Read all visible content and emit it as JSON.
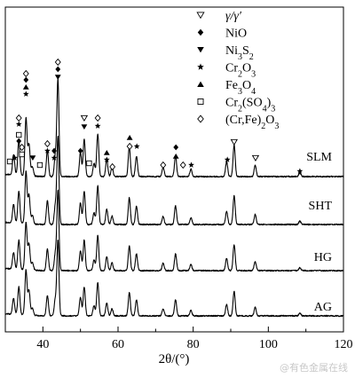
{
  "chart_data": {
    "type": "line",
    "xlabel": "2θ/(°)",
    "xlim": [
      30,
      120
    ],
    "xticks": [
      40,
      60,
      80,
      100,
      120
    ],
    "ylabel": "",
    "series": [
      {
        "name": "SLM",
        "offset": 3
      },
      {
        "name": "SHT",
        "offset": 2
      },
      {
        "name": "HG",
        "offset": 1
      },
      {
        "name": "AG",
        "offset": 0
      }
    ],
    "peaks": [
      {
        "x": 32.2,
        "h": 0.55
      },
      {
        "x": 33.6,
        "h": 0.95
      },
      {
        "x": 35.5,
        "h": 1.55
      },
      {
        "x": 36.3,
        "h": 0.85
      },
      {
        "x": 37.2,
        "h": 0.25
      },
      {
        "x": 41.2,
        "h": 0.7
      },
      {
        "x": 43.3,
        "h": 0.55
      },
      {
        "x": 44.0,
        "h": 2.6
      },
      {
        "x": 50.0,
        "h": 0.65
      },
      {
        "x": 51.0,
        "h": 1.0
      },
      {
        "x": 53.6,
        "h": 0.35
      },
      {
        "x": 54.6,
        "h": 1.15
      },
      {
        "x": 57.0,
        "h": 0.45
      },
      {
        "x": 58.4,
        "h": 0.25
      },
      {
        "x": 63.0,
        "h": 0.8
      },
      {
        "x": 64.9,
        "h": 0.55
      },
      {
        "x": 72.0,
        "h": 0.25
      },
      {
        "x": 75.3,
        "h": 0.55
      },
      {
        "x": 79.4,
        "h": 0.2
      },
      {
        "x": 88.9,
        "h": 0.4
      },
      {
        "x": 90.9,
        "h": 0.85
      },
      {
        "x": 96.5,
        "h": 0.3
      },
      {
        "x": 108.4,
        "h": 0.1
      }
    ],
    "legend": [
      {
        "symbol": "triangle-down-open",
        "label": "γ/γ′"
      },
      {
        "symbol": "diamond-filled",
        "label": "NiO"
      },
      {
        "symbol": "triangle-down-filled",
        "label": "Ni3S2"
      },
      {
        "symbol": "star",
        "label": "Cr2O3"
      },
      {
        "symbol": "triangle-up-filled",
        "label": "Fe3O4"
      },
      {
        "symbol": "square-open",
        "label": "Cr2(SO4)3"
      },
      {
        "symbol": "diamond-open",
        "label": "(Cr,Fe)2O3"
      }
    ],
    "markers": [
      {
        "x": 31.2,
        "y": 182,
        "symbol": "square-open"
      },
      {
        "x": 32.5,
        "y": 178,
        "symbol": "star"
      },
      {
        "x": 33.6,
        "y": 133,
        "symbol": "diamond-open"
      },
      {
        "x": 33.6,
        "y": 140,
        "symbol": "star"
      },
      {
        "x": 33.6,
        "y": 152,
        "symbol": "square-open"
      },
      {
        "x": 33.6,
        "y": 159,
        "symbol": "diamond-filled"
      },
      {
        "x": 34.4,
        "y": 166,
        "symbol": "diamond-open"
      },
      {
        "x": 34.4,
        "y": 174,
        "symbol": "square-open"
      },
      {
        "x": 35.5,
        "y": 83,
        "symbol": "diamond-open"
      },
      {
        "x": 35.5,
        "y": 90,
        "symbol": "diamond-filled"
      },
      {
        "x": 35.5,
        "y": 98,
        "symbol": "triangle-up-filled"
      },
      {
        "x": 35.5,
        "y": 106,
        "symbol": "star"
      },
      {
        "x": 37.3,
        "y": 178,
        "symbol": "triangle-down-filled"
      },
      {
        "x": 39.2,
        "y": 186,
        "symbol": "square-open"
      },
      {
        "x": 41.2,
        "y": 162,
        "symbol": "diamond-open"
      },
      {
        "x": 41.2,
        "y": 170,
        "symbol": "star"
      },
      {
        "x": 43.0,
        "y": 170,
        "symbol": "diamond-filled"
      },
      {
        "x": 43.0,
        "y": 178,
        "symbol": "star"
      },
      {
        "x": 44.0,
        "y": 70,
        "symbol": "diamond-open"
      },
      {
        "x": 44.0,
        "y": 78,
        "symbol": "diamond-filled"
      },
      {
        "x": 44.0,
        "y": 87,
        "symbol": "triangle-down-filled"
      },
      {
        "x": 50.0,
        "y": 170,
        "symbol": "diamond-filled"
      },
      {
        "x": 51.0,
        "y": 133,
        "symbol": "triangle-down-open"
      },
      {
        "x": 51.0,
        "y": 143,
        "symbol": "triangle-down-filled"
      },
      {
        "x": 52.3,
        "y": 184,
        "symbol": "square-open"
      },
      {
        "x": 54.6,
        "y": 133,
        "symbol": "diamond-open"
      },
      {
        "x": 54.6,
        "y": 142,
        "symbol": "star"
      },
      {
        "x": 57.0,
        "y": 172,
        "symbol": "triangle-up-filled"
      },
      {
        "x": 57.0,
        "y": 180,
        "symbol": "star"
      },
      {
        "x": 58.5,
        "y": 188,
        "symbol": "diamond-open"
      },
      {
        "x": 63.1,
        "y": 155,
        "symbol": "triangle-up-filled"
      },
      {
        "x": 63.1,
        "y": 165,
        "symbol": "diamond-open"
      },
      {
        "x": 65.0,
        "y": 165,
        "symbol": "star"
      },
      {
        "x": 72.0,
        "y": 186,
        "symbol": "diamond-open"
      },
      {
        "x": 75.4,
        "y": 166,
        "symbol": "diamond-filled"
      },
      {
        "x": 75.4,
        "y": 176,
        "symbol": "triangle-up-filled"
      },
      {
        "x": 77.3,
        "y": 186,
        "symbol": "diamond-open"
      },
      {
        "x": 79.5,
        "y": 186,
        "symbol": "star"
      },
      {
        "x": 89.1,
        "y": 180,
        "symbol": "star"
      },
      {
        "x": 90.9,
        "y": 160,
        "symbol": "triangle-down-open"
      },
      {
        "x": 96.6,
        "y": 178,
        "symbol": "triangle-down-open"
      },
      {
        "x": 108.4,
        "y": 193,
        "symbol": "star"
      }
    ]
  },
  "watermark": "@有色金属在线"
}
